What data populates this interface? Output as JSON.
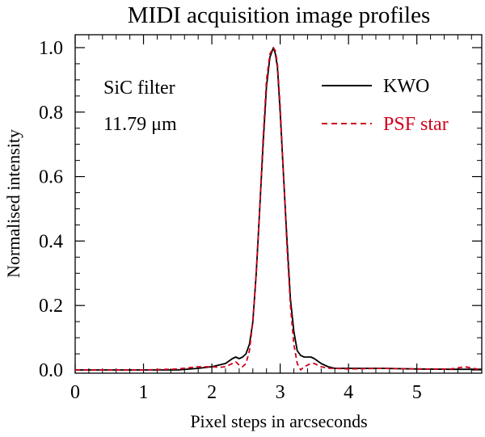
{
  "chart_data": {
    "type": "line",
    "title": "MIDI acquisition image profiles",
    "xlabel": "Pixel steps in arcseconds",
    "ylabel": "Normalised intensity",
    "xlim": [
      0,
      5.95
    ],
    "ylim": [
      -0.01,
      1.04
    ],
    "xticks": [
      0,
      1,
      2,
      3,
      4,
      5
    ],
    "xtick_labels": [
      "0",
      "1",
      "2",
      "3",
      "4",
      "5"
    ],
    "yticks": [
      0.0,
      0.2,
      0.4,
      0.6,
      0.8,
      1.0
    ],
    "ytick_labels": [
      "0.0",
      "0.2",
      "0.4",
      "0.6",
      "0.8",
      "1.0"
    ],
    "grid": false,
    "legend_position": "top-right",
    "annotations": [
      "SiC filter",
      "11.79 μm"
    ],
    "series": [
      {
        "name": "KWO",
        "color": "#000000",
        "style": "solid",
        "x": [
          0.0,
          0.5,
          1.0,
          1.5,
          1.8,
          2.0,
          2.1,
          2.2,
          2.3,
          2.35,
          2.4,
          2.45,
          2.5,
          2.55,
          2.6,
          2.65,
          2.7,
          2.75,
          2.8,
          2.85,
          2.9,
          2.93,
          2.96,
          3.0,
          3.05,
          3.1,
          3.15,
          3.2,
          3.25,
          3.3,
          3.35,
          3.4,
          3.45,
          3.5,
          3.6,
          3.7,
          3.8,
          4.0,
          4.5,
          5.0,
          5.5,
          5.95
        ],
        "y": [
          0.0,
          0.0,
          0.0,
          0.0,
          0.005,
          0.01,
          0.015,
          0.02,
          0.035,
          0.04,
          0.035,
          0.04,
          0.05,
          0.08,
          0.15,
          0.3,
          0.5,
          0.7,
          0.88,
          0.97,
          1.0,
          0.98,
          0.94,
          0.8,
          0.6,
          0.4,
          0.22,
          0.12,
          0.06,
          0.045,
          0.04,
          0.04,
          0.04,
          0.035,
          0.02,
          0.01,
          0.005,
          0.005,
          0.005,
          0.003,
          0.002,
          0.002
        ]
      },
      {
        "name": "PSF star",
        "color": "#d0021b",
        "style": "dashed",
        "x": [
          0.0,
          0.5,
          1.0,
          1.5,
          1.8,
          2.0,
          2.1,
          2.2,
          2.3,
          2.35,
          2.4,
          2.45,
          2.5,
          2.55,
          2.6,
          2.65,
          2.7,
          2.75,
          2.8,
          2.85,
          2.9,
          2.93,
          2.96,
          3.0,
          3.05,
          3.1,
          3.15,
          3.2,
          3.25,
          3.3,
          3.35,
          3.4,
          3.45,
          3.5,
          3.6,
          3.7,
          3.8,
          4.0,
          4.5,
          5.0,
          5.5,
          5.7,
          5.95
        ],
        "y": [
          0.0,
          0.0,
          0.0,
          0.003,
          0.01,
          0.01,
          0.008,
          0.01,
          0.02,
          0.025,
          0.015,
          0.01,
          0.02,
          0.06,
          0.15,
          0.3,
          0.5,
          0.72,
          0.9,
          0.98,
          1.0,
          0.99,
          0.95,
          0.82,
          0.6,
          0.38,
          0.2,
          0.08,
          0.02,
          0.0,
          0.01,
          0.015,
          0.02,
          0.02,
          0.01,
          0.005,
          0.005,
          0.003,
          0.005,
          0.003,
          0.003,
          0.01,
          0.0
        ]
      }
    ]
  }
}
